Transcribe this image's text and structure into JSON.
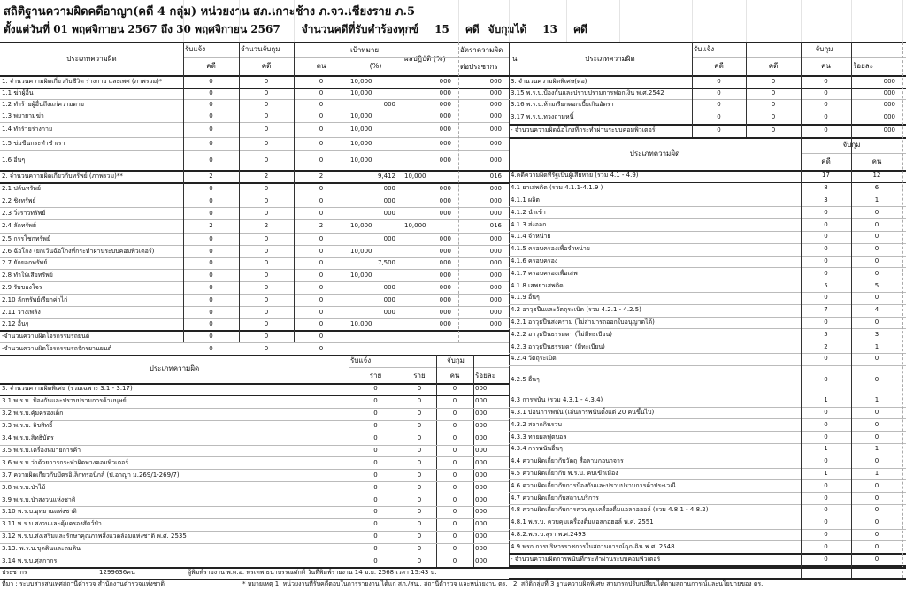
{
  "title": "สถิติฐานความผิดคดีอาญา(คดี 4 กลุ่ม) หน่วยงาน สภ.เกาะช้าง ภ.จว.เชียงราย ภ.5",
  "period": {
    "range": "ตั้งแต่วันที่ 01 พฤศจิกายน 2567 ถึง 30 พฤศจิกายน 2567",
    "received_label": "จำนวนคดีที่รับคำร้องทุกข์",
    "received": "15",
    "unit1": "คดี",
    "arrest_label": "จับกุมได้",
    "arrested": "13",
    "unit2": "คดี"
  },
  "left_header": {
    "type": "ประเภทความผิด",
    "report": "รับแจ้ง",
    "arrest": "จำนวนจับกุม",
    "case": "คดี",
    "case2": "คดี",
    "person": "คน",
    "target": "เป้าหมาย",
    "target_unit": "(%)",
    "result": "ผลปฏิบัติ (%)",
    "rate": "อัตราความผิด",
    "rate2": "ต่อประชากร"
  },
  "left_rows": [
    [
      "1. จำนวนความผิดเกี่ยวกับชีวิต ร่างกาย และเพศ (ภาพรวม)*",
      "0",
      "0",
      "0",
      "10,000",
      "000",
      "000"
    ],
    [
      "1.1 ฆ่าผู้อื่น",
      "0",
      "0",
      "0",
      "10,000",
      "000",
      "000"
    ],
    [
      "1.2 ทำร้ายผู้อื่นถึงแก่ความตาย",
      "0",
      "0",
      "0",
      "000",
      "000",
      "000"
    ],
    [
      "1.3 พยายามฆ่า",
      "0",
      "0",
      "0",
      "10,000",
      "000",
      "000"
    ],
    [
      "1.4 ทำร้ายร่างกาย",
      "0",
      "0",
      "0",
      "10,000",
      "000",
      "000"
    ],
    [
      "1.5 ข่มขืนกระทำชำเรา",
      "0",
      "0",
      "0",
      "10,000",
      "000",
      "000"
    ],
    [
      "1.6 อื่นๆ",
      "0",
      "0",
      "0",
      "10,000",
      "000",
      "000"
    ],
    [
      "2. จำนวนความผิดเกี่ยวกับทรัพย์ (ภาพรวม)**",
      "2",
      "2",
      "2",
      "9,412",
      "10,000",
      "016"
    ],
    [
      "2.1 ปล้นทรัพย์",
      "0",
      "0",
      "0",
      "000",
      "000",
      "000"
    ],
    [
      "2.2 ชิงทรัพย์",
      "0",
      "0",
      "0",
      "000",
      "000",
      "000"
    ],
    [
      "2.3 วิ่งราวทรัพย์",
      "0",
      "0",
      "0",
      "000",
      "000",
      "000"
    ],
    [
      "2.4 ลักทรัพย์",
      "2",
      "2",
      "2",
      "10,000",
      "10,000",
      "016"
    ],
    [
      "2.5 กรรโชกทรัพย์",
      "0",
      "0",
      "0",
      "000",
      "000",
      "000"
    ],
    [
      "2.6  ฉ้อโกง  (ยกเว้นฉ้อโกงที่กระทำผ่านระบบคอมพิวเตอร์)",
      "0",
      "0",
      "0",
      "10,000",
      "000",
      "000"
    ],
    [
      "2.7 ยักยอกทรัพย์",
      "0",
      "0",
      "0",
      "7,500",
      "000",
      "000"
    ],
    [
      "2.8 ทำให้เสียทรัพย์",
      "0",
      "0",
      "0",
      "10,000",
      "000",
      "000"
    ],
    [
      "2.9 รับของโจร",
      "0",
      "0",
      "0",
      "000",
      "000",
      "000"
    ],
    [
      "2.10 ลักทรัพย์เรียกค่าไถ่",
      "0",
      "0",
      "0",
      "000",
      "000",
      "000"
    ],
    [
      "2.11 วางเพลิง",
      "0",
      "0",
      "0",
      "000",
      "000",
      "000"
    ],
    [
      "2.12 อื่นๆ",
      "0",
      "0",
      "0",
      "10,000",
      "000",
      "000"
    ],
    [
      "-จำนวนความผิดโจรกรรมรถยนต์",
      "0",
      "0",
      "0",
      "",
      "",
      ""
    ],
    [
      "-จำนวนความผิดโจรกรรมรถจักรยานยนต์",
      "0",
      "0",
      "0",
      "",
      "",
      ""
    ]
  ],
  "sec3_header": {
    "type": "ประเภทความผิด",
    "report": "รับแจ้ง",
    "arrest": "จับกุม",
    "case": "ราย",
    "case2": "ราย",
    "person": "คน",
    "percent": "ร้อยละ"
  },
  "sec3_rows": [
    [
      "3. จำนวนความผิดพิเศษ (รวมเฉพาะ 3.1 - 3.17)",
      "0",
      "0",
      "0",
      "000"
    ],
    [
      "3.1 พ.ร.บ. ป้องกันและปราบปรามการค้ามนุษย์",
      "0",
      "0",
      "0",
      "000"
    ],
    [
      "3.2 พ.ร.บ.คุ้มครองเด็ก",
      "0",
      "0",
      "0",
      "000"
    ],
    [
      "3.3 พ.ร.บ. ลิขสิทธิ์",
      "0",
      "0",
      "0",
      "000"
    ],
    [
      "3.4 พ.ร.บ.สิทธิบัตร",
      "0",
      "0",
      "0",
      "000"
    ],
    [
      "3.5  พ.ร.บ.เครื่องหมายการค้า",
      "0",
      "0",
      "0",
      "000"
    ],
    [
      "3.6 พ.ร.บ.ว่าด้วยการกระทำผิดทางคอมพิวเตอร์",
      "0",
      "0",
      "0",
      "000"
    ],
    [
      "3.7 ความผิดเกี่ยวกับบัตรอิเล็กทรอนิกส์ (ป.อาญา ม.269/1-269/7)",
      "0",
      "0",
      "0",
      "000"
    ],
    [
      "3.8 พ.ร.บ.ป่าไม้",
      "0",
      "0",
      "0",
      "000"
    ],
    [
      "3.9  พ.ร.บ.ป่าสงวนแห่งชาติ",
      "0",
      "0",
      "0",
      "000"
    ],
    [
      "3.10  พ.ร.บ.อุทยานแห่งชาติ",
      "0",
      "0",
      "0",
      "000"
    ],
    [
      "3.11  พ.ร.บ.สงวนและคุ้มครองสัตว์ป่า",
      "0",
      "0",
      "0",
      "000"
    ],
    [
      "3.12 พ.ร.บ.ส่งเสริมและรักษาคุณภาพสิ่งแวดล้อมแห่งชาติ พ.ศ. 2535",
      "0",
      "0",
      "0",
      "000"
    ],
    [
      "3.13. พ.ร.บ.ขุดดินและถมดิน",
      "0",
      "0",
      "0",
      "000"
    ],
    [
      "3.14 พ.ร.บ.ศุลกากร",
      "0",
      "0",
      "0",
      "000"
    ]
  ],
  "right_header": {
    "n": "น",
    "type": "ประเภทความผิด",
    "report": "รับแจ้ง",
    "arrest": "จับกุม",
    "case": "คดี",
    "case2": "คดี",
    "person": "คน",
    "percent": "ร้อยละ"
  },
  "right_rows": [
    [
      "3.  จำนวนความผิดพิเศษ(ต่อ)",
      "0",
      "0",
      "0",
      "000"
    ],
    [
      "3.15  พ.ร.บ.ป้องกันและปราบปรามการฟอกเงิน  พ.ศ.2542",
      "0",
      "0",
      "0",
      "000"
    ],
    [
      "3.16 พ.ร.บ.ห้ามเรียกดอกเบี้ยเกินอัตรา",
      "0",
      "0",
      "0",
      "000"
    ],
    [
      "3.17 พ.ร.บ.ทวงถามหนี้",
      "0",
      "0",
      "0",
      "000"
    ],
    [
      "- จำนวนความผิดฉ้อโกงที่กระทำผ่านระบบคอมพิวเตอร์",
      "0",
      "0",
      "0",
      "000"
    ]
  ],
  "sec4_header": {
    "type": "ประเภทความผิด",
    "arrest": "จับกุม",
    "case": "คดี",
    "person": "คน"
  },
  "sec4_rows": [
    [
      "4.คดีความผิดที่รัฐเป็นผู้เสียหาย (รวม 4.1 - 4.9)",
      "17",
      "12"
    ],
    [
      "4.1 ยาเสพติด (รวม 4.1.1-4.1.9 )",
      "8",
      "6"
    ],
    [
      "4.1.1 ผลิต",
      "3",
      "1"
    ],
    [
      "4.1.2 นำเข้า",
      "0",
      "0"
    ],
    [
      "4.1.3 ส่งออก",
      "0",
      "0"
    ],
    [
      "4.1.4 จำหน่าย",
      "0",
      "0"
    ],
    [
      "4.1.5 ครอบครองเพื่อจำหน่าย",
      "0",
      "0"
    ],
    [
      "4.1.6 ครอบครอง",
      "0",
      "0"
    ],
    [
      "4.1.7   ครอบครองเพื่อเสพ",
      "0",
      "0"
    ],
    [
      "4.1.8 เสพยาเสพติด",
      "5",
      "5"
    ],
    [
      "4.1.9 อื่นๆ",
      "0",
      "0"
    ],
    [
      "4.2 อาวุธปืนและวัตถุระเบิด (รวม 4.2.1 - 4.2.5)",
      "7",
      "4"
    ],
    [
      "4.2.1 อาวุธปืนสงคราม (ไม่สามารถออกใบอนุญาตได้)",
      "0",
      "0"
    ],
    [
      "4.2.2 อาวุธปืนธรรมดา (ไม่มีทะเบียน)",
      "5",
      "3"
    ],
    [
      "4.2.3 อาวุธปืนธรรมดา (มีทะเบียน)",
      "2",
      "1"
    ],
    [
      "4.2.4 วัตถุระเบิด",
      "0",
      "0"
    ],
    [
      "4.2.5 อื่นๆ",
      "0",
      "0"
    ],
    [
      "4.3 การพนัน (รวม 4.3.1 - 4.3.4)",
      "1",
      "1"
    ],
    [
      "4.3.1 บ่อนการพนัน (เล่นการพนันตั้งแต่ 20 คนขึ้นไป)",
      "0",
      "0"
    ],
    [
      "4.3.2 สลากกินรวบ",
      "0",
      "0"
    ],
    [
      "4.3.3 ทายผลฟุตบอล",
      "0",
      "0"
    ],
    [
      "4.3.4 การพนันอื่นๆ",
      "1",
      "1"
    ],
    [
      "4.4 ความผิดเกี่ยวกับวัตถุ สื่อลามกอนาจาร",
      "0",
      "0"
    ],
    [
      "4.5 ความผิดเกี่ยวกับ พ.ร.บ. คนเข้าเมือง",
      "1",
      "1"
    ],
    [
      "4.6 ความผิดเกี่ยวกับการป้องกันและปราบปรามการค้าประเวณี",
      "0",
      "0"
    ],
    [
      "4.7 ความผิดเกี่ยวกับสถานบริการ",
      "0",
      "0"
    ],
    [
      "4.8 ความผิดเกี่ยวกับการควบคุมเครื่องดื่มแอลกอฮอล์ (รวม 4.8.1 - 4.8.2)",
      "0",
      "0"
    ],
    [
      "4.8.1 พ.ร.บ. ควบคุมเครื่องดื่มแอลกอฮอล์ พ.ศ. 2551",
      "0",
      "0"
    ],
    [
      "4.8.2.พ.ร.บ.สุรา พ.ศ.2493",
      "0",
      "0"
    ],
    [
      "4.9 พรก.การบริหารราชการในสถานการณ์ฉุกเฉิน พ.ศ. 2548",
      "0",
      "0"
    ],
    [
      "- จำนวนความผิดการพนันที่กระทำผ่านระบบคอมพิวเตอร์",
      "0",
      "0"
    ]
  ],
  "footer": {
    "population_label": "ประชากร",
    "population": "1299636คน",
    "printed_by": "ผู้พิมพ์รายงาน พ.ต.อ. พรเทพ ธนาบรรณศักดิ์ วันที่พิมพ์รายงาน 14 ม.ย. 2568 เวลา 15:43 น.",
    "source": "ที่มา : ระบบสารสนเทศสถานีตำรวจ สำนักงานตำรวจแห่งชาติ",
    "note1": "* หมายเหตุ 1. หน่วยงานที่รับคดีตอบในการรายงาน ได้แก่ สภ./สน., สถานีตำรวจ และหน่วยงาน ตร.",
    "note2": "2. สถิติกลุ่มที่ 3 ฐานความผิดพิเศษ สามารถปรับเปลี่ยนได้ตามสถานการณ์และนโยบายของ ตร."
  }
}
